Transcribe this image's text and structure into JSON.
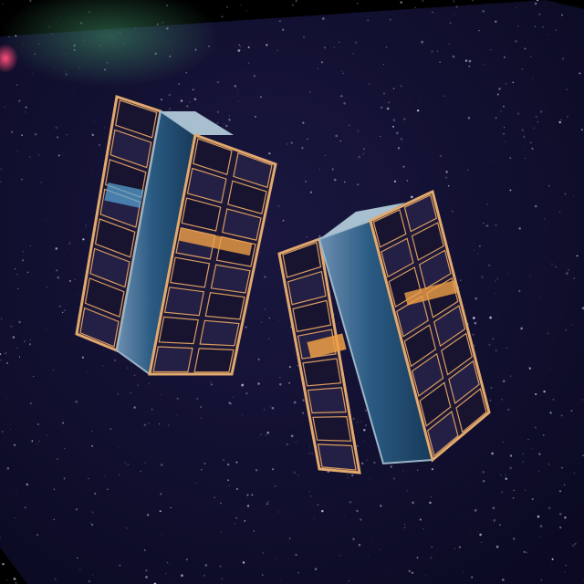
{
  "scene": {
    "colors": {
      "border": "#000000",
      "sky": "#12102e",
      "sky_deep": "#0a0920",
      "glow": "#2f6b52",
      "red_glow": "#ff3a6a",
      "frame": "#d79a5a",
      "frame_light": "#e8b684",
      "cell": "#1a1636",
      "cell_alt": "#28234a",
      "body_blue": "#1f4a6e",
      "body_light": "#5f84a6",
      "body_top": "#a9c0cf",
      "panel_blue": "#2f6f99",
      "accent_orange": "#f09a3a"
    },
    "satellites": [
      {
        "name": "cubesat-left"
      },
      {
        "name": "cubesat-right"
      }
    ]
  }
}
